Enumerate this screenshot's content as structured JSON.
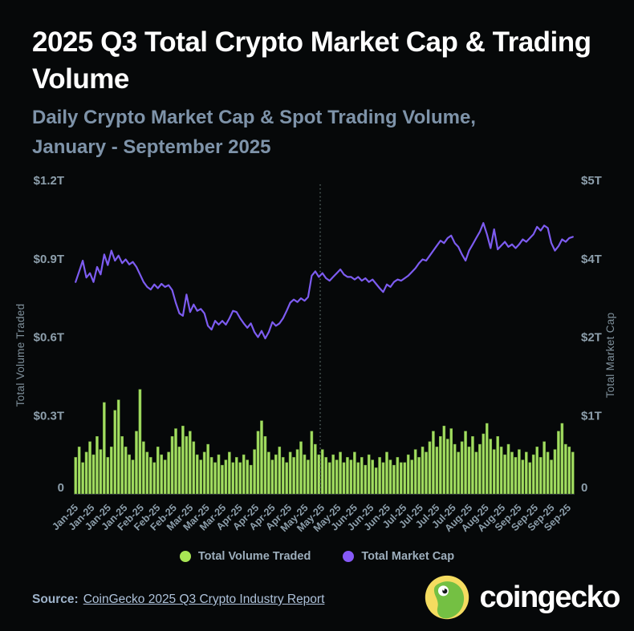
{
  "header": {
    "title": "2025 Q3 Total Crypto Market Cap & Trading Volume",
    "subtitle_line1": "Daily Crypto Market Cap & Spot Trading Volume,",
    "subtitle_line2": "January - September 2025"
  },
  "colors": {
    "background": "#060809",
    "title": "#ffffff",
    "subtitle": "#7e93a9",
    "axis_text": "#8d9fac",
    "volume_green": "#a3dd61",
    "volume_green_edge": "#70a83e",
    "market_cap_purple": "#7d5cf1",
    "legend_green_dot": "#a8e554",
    "legend_purple_dot": "#8659f7",
    "divider_gray": "#5e706d",
    "baseline_gray": "#2f363b"
  },
  "legend": {
    "items": [
      {
        "label": "Total Volume Traded",
        "color": "#a8e554"
      },
      {
        "label": "Total Market Cap",
        "color": "#8659f7"
      }
    ]
  },
  "footer": {
    "source_label": "Source:",
    "source_link": "CoinGecko 2025 Q3 Crypto Industry Report",
    "brand": "coingecko",
    "logo_icon": "gecko-logo"
  },
  "chart_data": {
    "type": "combo (bar + line, dual y-axis)",
    "title": "2025 Q3 Total Crypto Market Cap & Trading Volume",
    "subtitle": "Daily Crypto Market Cap & Spot Trading Volume, January - September 2025",
    "grid": "off",
    "legend_position": "bottom-center",
    "left_axis": {
      "title": "Total Volume Traded",
      "tick_labels": [
        "$1.2T",
        "$0.9T",
        "$0.6T",
        "$0.3T",
        "0"
      ],
      "range_trillions_usd": [
        0,
        1.2
      ]
    },
    "right_axis": {
      "title": "Total Market Cap",
      "tick_labels": [
        "$5T",
        "$4T",
        "$2T",
        "$1T",
        "0"
      ],
      "range_trillions_usd": [
        0,
        5
      ]
    },
    "x_axis": {
      "unit": "weekly ticks, daily data, January - September 2025",
      "tick_labels": [
        "Jan-25",
        "Jan-25",
        "Jan-25",
        "Jan-25",
        "Feb-25",
        "Feb-25",
        "Feb-25",
        "Mar-25",
        "Mar-25",
        "Mar-25",
        "Apr-25",
        "Apr-25",
        "Apr-25",
        "Apr-25",
        "May-25",
        "May-25",
        "May-25",
        "Jun-25",
        "Jun-25",
        "Jun-25",
        "Jul-25",
        "Jul-25",
        "Jul-25",
        "Jul-25",
        "Aug-25",
        "Aug-25",
        "Aug-25",
        "Sep-25",
        "Sep-25",
        "Sep-25",
        "Sep-25"
      ]
    },
    "divider_line": {
      "style": "dotted-vertical",
      "position_fraction_of_x_range": 0.492
    },
    "series": [
      {
        "name": "Total Volume Traded",
        "type": "bar",
        "axis": "left",
        "unit": "USD trillions",
        "values": [
          0.14,
          0.18,
          0.12,
          0.16,
          0.2,
          0.15,
          0.22,
          0.17,
          0.35,
          0.14,
          0.18,
          0.32,
          0.36,
          0.22,
          0.18,
          0.15,
          0.13,
          0.24,
          0.4,
          0.2,
          0.16,
          0.14,
          0.12,
          0.18,
          0.15,
          0.13,
          0.16,
          0.22,
          0.25,
          0.18,
          0.26,
          0.22,
          0.24,
          0.2,
          0.15,
          0.13,
          0.16,
          0.19,
          0.14,
          0.12,
          0.15,
          0.11,
          0.13,
          0.16,
          0.12,
          0.14,
          0.12,
          0.15,
          0.13,
          0.11,
          0.17,
          0.24,
          0.28,
          0.22,
          0.16,
          0.13,
          0.15,
          0.18,
          0.14,
          0.12,
          0.16,
          0.14,
          0.17,
          0.2,
          0.15,
          0.13,
          0.24,
          0.19,
          0.15,
          0.17,
          0.14,
          0.12,
          0.15,
          0.13,
          0.16,
          0.12,
          0.14,
          0.13,
          0.16,
          0.12,
          0.14,
          0.11,
          0.15,
          0.13,
          0.1,
          0.14,
          0.12,
          0.16,
          0.13,
          0.11,
          0.14,
          0.12,
          0.12,
          0.15,
          0.13,
          0.17,
          0.14,
          0.18,
          0.16,
          0.2,
          0.24,
          0.18,
          0.22,
          0.26,
          0.21,
          0.25,
          0.19,
          0.16,
          0.2,
          0.24,
          0.18,
          0.22,
          0.16,
          0.19,
          0.23,
          0.27,
          0.21,
          0.17,
          0.22,
          0.18,
          0.15,
          0.19,
          0.16,
          0.14,
          0.17,
          0.13,
          0.16,
          0.12,
          0.15,
          0.18,
          0.14,
          0.2,
          0.16,
          0.13,
          0.17,
          0.24,
          0.27,
          0.19,
          0.18,
          0.16
        ]
      },
      {
        "name": "Total Market Cap",
        "type": "line",
        "axis": "right",
        "unit": "USD trillions",
        "values": [
          3.38,
          3.55,
          3.72,
          3.45,
          3.52,
          3.38,
          3.62,
          3.5,
          3.82,
          3.65,
          3.88,
          3.72,
          3.8,
          3.68,
          3.74,
          3.66,
          3.7,
          3.62,
          3.5,
          3.38,
          3.3,
          3.26,
          3.34,
          3.28,
          3.35,
          3.3,
          3.33,
          3.25,
          3.05,
          2.88,
          2.84,
          3.18,
          2.9,
          3.02,
          2.92,
          2.95,
          2.88,
          2.68,
          2.62,
          2.76,
          2.7,
          2.76,
          2.7,
          2.8,
          2.92,
          2.9,
          2.8,
          2.72,
          2.65,
          2.72,
          2.58,
          2.5,
          2.6,
          2.48,
          2.58,
          2.74,
          2.68,
          2.72,
          2.8,
          2.92,
          3.05,
          3.1,
          3.06,
          3.12,
          3.08,
          3.14,
          3.48,
          3.55,
          3.46,
          3.52,
          3.44,
          3.4,
          3.46,
          3.52,
          3.58,
          3.5,
          3.46,
          3.46,
          3.42,
          3.46,
          3.4,
          3.44,
          3.38,
          3.42,
          3.35,
          3.28,
          3.22,
          3.34,
          3.3,
          3.38,
          3.42,
          3.4,
          3.44,
          3.48,
          3.54,
          3.6,
          3.68,
          3.74,
          3.72,
          3.8,
          3.88,
          3.96,
          4.04,
          4.0,
          4.08,
          4.12,
          4.0,
          3.94,
          3.82,
          3.72,
          3.88,
          3.98,
          4.08,
          4.18,
          4.32,
          4.14,
          3.92,
          4.22,
          3.9,
          3.96,
          4.02,
          3.94,
          3.98,
          3.92,
          3.98,
          4.06,
          4.02,
          4.08,
          4.14,
          4.26,
          4.2,
          4.28,
          4.24,
          4.0,
          3.88,
          3.95,
          4.06,
          4.02,
          4.08,
          4.1
        ]
      }
    ]
  }
}
